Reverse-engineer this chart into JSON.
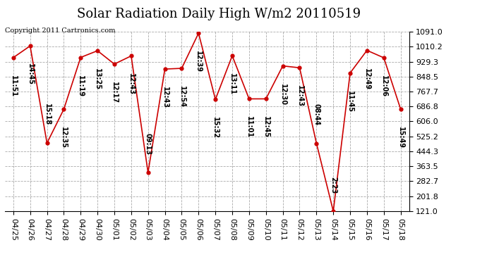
{
  "title": "Solar Radiation Daily High W/m2 20110519",
  "copyright": "Copyright 2011 Cartronics.com",
  "dates": [
    "04/25",
    "04/26",
    "04/27",
    "04/28",
    "04/29",
    "04/30",
    "05/01",
    "05/02",
    "05/03",
    "05/04",
    "05/05",
    "05/06",
    "05/07",
    "05/08",
    "05/09",
    "05/10",
    "05/11",
    "05/12",
    "05/13",
    "05/14",
    "05/15",
    "05/16",
    "05/17",
    "05/18"
  ],
  "values": [
    951,
    1014,
    489,
    672,
    952,
    988,
    916,
    960,
    330,
    889,
    893,
    1083,
    725,
    961,
    728,
    728,
    906,
    896,
    488,
    121,
    868,
    990,
    950,
    672
  ],
  "labels": [
    "11:51",
    "14:45",
    "15:18",
    "12:35",
    "11:19",
    "13:25",
    "12:17",
    "12:43",
    "09:13",
    "12:43",
    "12:54",
    "12:39",
    "15:32",
    "13:11",
    "11:01",
    "12:45",
    "12:30",
    "12:43",
    "08:44",
    "2:23",
    "11:45",
    "12:49",
    "12:06",
    "15:49"
  ],
  "ymin": 121.0,
  "ymax": 1091.0,
  "yticks": [
    121.0,
    201.8,
    282.7,
    363.5,
    444.3,
    525.2,
    606.0,
    686.8,
    767.7,
    848.5,
    929.3,
    1010.2,
    1091.0
  ],
  "line_color": "#cc0000",
  "marker_color": "#cc0000",
  "bg_color": "#ffffff",
  "grid_color": "#aaaaaa",
  "title_fontsize": 13,
  "label_fontsize": 7,
  "tick_fontsize": 8,
  "copyright_fontsize": 7
}
